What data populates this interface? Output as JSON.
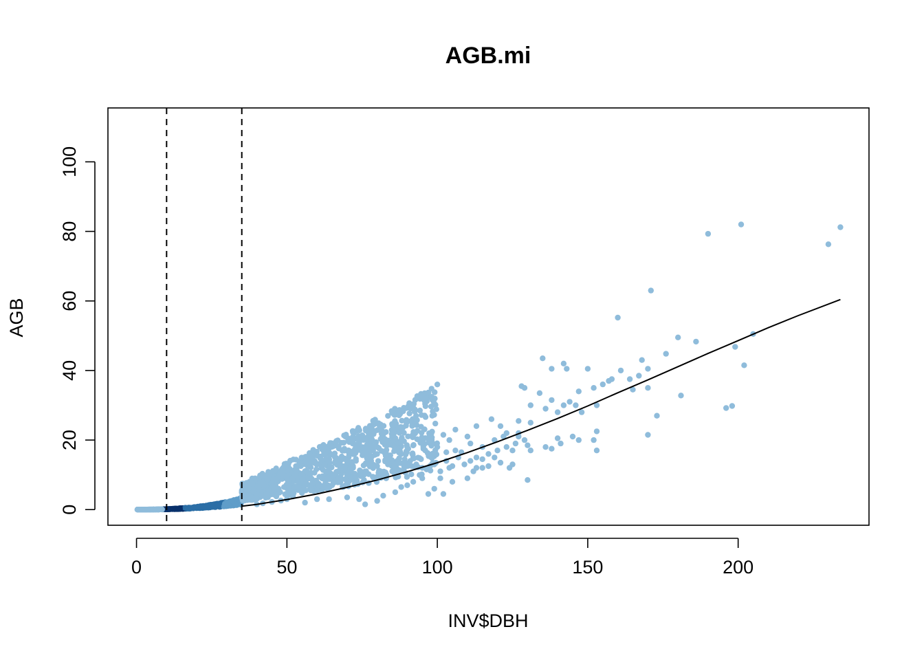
{
  "chart_data": {
    "type": "scatter",
    "title": "AGB.mi",
    "xlabel": "INV$DBH",
    "ylabel": "AGB",
    "xlim": [
      -9.5,
      243.5
    ],
    "ylim": [
      -4.5,
      115.5
    ],
    "xticks": [
      0,
      50,
      100,
      150,
      200
    ],
    "yticks": [
      0,
      20,
      40,
      60,
      80,
      100
    ],
    "grid": false,
    "legend": "none",
    "colors": {
      "point_light": "#8fbcdb",
      "point_mid": "#2b6ea6",
      "point_dark": "#08306b",
      "fit_line": "#000000",
      "vlines": "#000000"
    },
    "vlines": [
      10,
      35
    ],
    "fit_line": {
      "x": [
        35,
        40,
        50,
        60,
        70,
        80,
        90,
        100,
        110,
        120,
        130,
        140,
        150,
        160,
        170,
        180,
        190,
        200,
        210,
        220,
        234
      ],
      "y": [
        1.0,
        1.5,
        2.9,
        4.5,
        6.4,
        8.5,
        10.9,
        13.5,
        16.4,
        19.5,
        22.8,
        26.2,
        29.8,
        33.6,
        37.3,
        41.1,
        44.9,
        48.6,
        52.3,
        55.8,
        60.4
      ]
    },
    "series": [
      {
        "points": [
          [
            135,
            43.5
          ],
          [
            142,
            42
          ],
          [
            143,
            40.5
          ],
          [
            138,
            40.5
          ],
          [
            150,
            40.5
          ],
          [
            147,
            34
          ],
          [
            152,
            35
          ],
          [
            153,
            30
          ],
          [
            155,
            36
          ],
          [
            157,
            37
          ],
          [
            158,
            37.5
          ],
          [
            160,
            55.2
          ],
          [
            161,
            40
          ],
          [
            164,
            37.5
          ],
          [
            165,
            34.5
          ],
          [
            167,
            38.5
          ],
          [
            168,
            43
          ],
          [
            170,
            40.5
          ],
          [
            170,
            35
          ],
          [
            171,
            63
          ],
          [
            173,
            27
          ],
          [
            176,
            44.8
          ],
          [
            180,
            49.5
          ],
          [
            181,
            32.8
          ],
          [
            186,
            48.3
          ],
          [
            190,
            79.3
          ],
          [
            196,
            29.2
          ],
          [
            198,
            29.8
          ],
          [
            199,
            46.8
          ],
          [
            201,
            82
          ],
          [
            202,
            41.5
          ],
          [
            205,
            50.5
          ],
          [
            230,
            76.3
          ],
          [
            234,
            81.2
          ],
          [
            170,
            21.5
          ],
          [
            152,
            20
          ],
          [
            153,
            22.5
          ],
          [
            153,
            17
          ],
          [
            140,
            20.5
          ],
          [
            141,
            19
          ],
          [
            145,
            21
          ],
          [
            147,
            20
          ],
          [
            128,
            35.5
          ],
          [
            129,
            35
          ],
          [
            131,
            30
          ],
          [
            134,
            33.5
          ],
          [
            136,
            29
          ],
          [
            138,
            31.5
          ],
          [
            140,
            28
          ],
          [
            142,
            30
          ],
          [
            144,
            31
          ],
          [
            146,
            30
          ],
          [
            148,
            28
          ],
          [
            130,
            18.5
          ],
          [
            131,
            17
          ],
          [
            136,
            18
          ],
          [
            138,
            17.5
          ],
          [
            130,
            8.5
          ],
          [
            124,
            12
          ],
          [
            125,
            13
          ],
          [
            118,
            26
          ],
          [
            121,
            24
          ],
          [
            123,
            22
          ],
          [
            127,
            25.5
          ],
          [
            131,
            25
          ],
          [
            113,
            24
          ],
          [
            110,
            21
          ],
          [
            111,
            19
          ],
          [
            115,
            18
          ],
          [
            119,
            20
          ],
          [
            122,
            21
          ],
          [
            126,
            19
          ],
          [
            127,
            21
          ],
          [
            104,
            20
          ],
          [
            102,
            21.5
          ],
          [
            106,
            23
          ],
          [
            106,
            17
          ],
          [
            108,
            16.5
          ],
          [
            113,
            15
          ],
          [
            115,
            12
          ],
          [
            117,
            12.5
          ],
          [
            120,
            17
          ],
          [
            104,
            12
          ],
          [
            105,
            8
          ],
          [
            101,
            9
          ],
          [
            110,
            9
          ],
          [
            112,
            11
          ],
          [
            103,
            16.5
          ],
          [
            100,
            18
          ],
          [
            98,
            15
          ],
          [
            96,
            17
          ],
          [
            94,
            20
          ],
          [
            88,
            16
          ],
          [
            90,
            18
          ],
          [
            92,
            15
          ],
          [
            86,
            13
          ],
          [
            84,
            14.5
          ],
          [
            80,
            12.5
          ],
          [
            82,
            10.5
          ],
          [
            76,
            11
          ],
          [
            78,
            13
          ],
          [
            73,
            9.5
          ],
          [
            70,
            8
          ],
          [
            68,
            9
          ],
          [
            65,
            7
          ],
          [
            62,
            6.5
          ],
          [
            60,
            5.5
          ],
          [
            58,
            5.5
          ],
          [
            55,
            4.8
          ],
          [
            52,
            3.8
          ],
          [
            50,
            3
          ],
          [
            48,
            2.6
          ],
          [
            45,
            2.2
          ],
          [
            42,
            1.8
          ],
          [
            40,
            1.5
          ],
          [
            88,
            6.5
          ],
          [
            86,
            5
          ],
          [
            90,
            7
          ],
          [
            92,
            8
          ],
          [
            95,
            9
          ],
          [
            97,
            4.5
          ],
          [
            99,
            6
          ],
          [
            102,
            4.5
          ],
          [
            80,
            2.5
          ],
          [
            82,
            4
          ],
          [
            76,
            1.5
          ],
          [
            74,
            3
          ],
          [
            70,
            3.5
          ],
          [
            64,
            3
          ],
          [
            60,
            3
          ],
          [
            56,
            2
          ],
          [
            67,
            11
          ],
          [
            70,
            10
          ],
          [
            72,
            12
          ],
          [
            74,
            10
          ],
          [
            78,
            14
          ],
          [
            80,
            16
          ],
          [
            83,
            9
          ],
          [
            85,
            11
          ],
          [
            87,
            9.5
          ],
          [
            89,
            12
          ],
          [
            91,
            14
          ],
          [
            93,
            13
          ],
          [
            95,
            12
          ],
          [
            97,
            16
          ],
          [
            99,
            13
          ],
          [
            101,
            11
          ],
          [
            103,
            14
          ],
          [
            105,
            12.5
          ],
          [
            107,
            15
          ],
          [
            109,
            13
          ],
          [
            111,
            14
          ],
          [
            113,
            12
          ],
          [
            115,
            14.5
          ],
          [
            117,
            16
          ],
          [
            119,
            15
          ],
          [
            121,
            13.5
          ],
          [
            123,
            18
          ],
          [
            125,
            17
          ],
          [
            127,
            22
          ],
          [
            129,
            20
          ]
        ],
        "bands": [
          {
            "x_range": [
              0,
              35
            ],
            "color": "#2b6ea6"
          },
          {
            "x_range": [
              35,
              100
            ],
            "color": "#8fbcdb"
          }
        ]
      }
    ]
  }
}
